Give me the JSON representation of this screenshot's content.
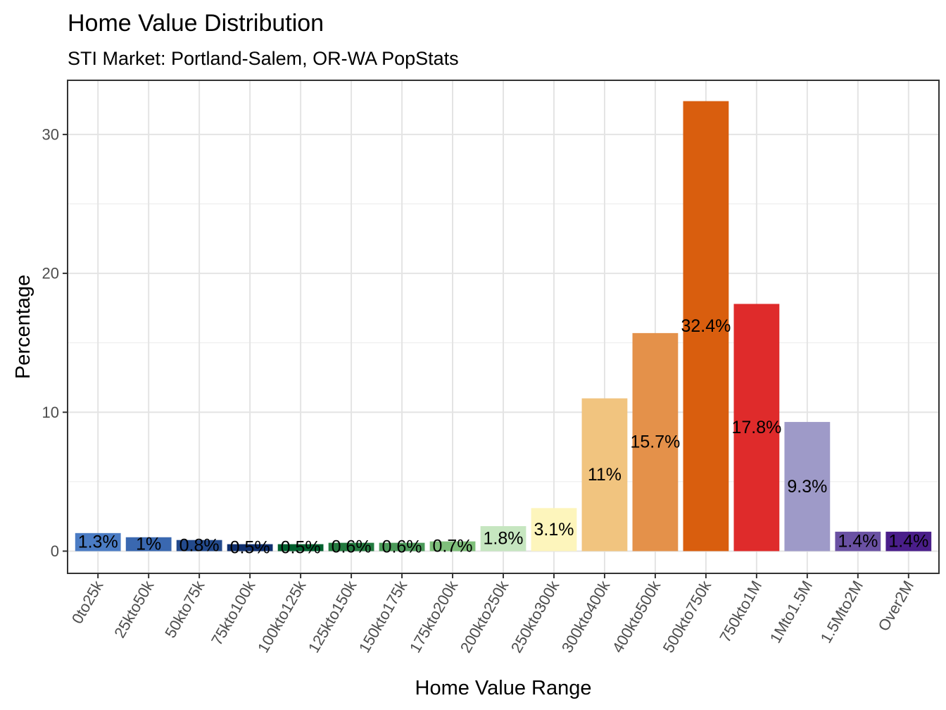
{
  "chart_data": {
    "type": "bar",
    "title": "Home Value Distribution",
    "subtitle": "STI Market: Portland-Salem, OR-WA PopStats",
    "xlabel": "Home Value Range",
    "ylabel": "Percentage",
    "ylim": [
      -1.6,
      33.9
    ],
    "yticks": [
      0,
      10,
      20,
      30
    ],
    "ytick_labels": [
      "0",
      "10",
      "20",
      "30"
    ],
    "grid": true,
    "categories": [
      "0to25k",
      "25kto50k",
      "50kto75k",
      "75kto100k",
      "100kto125k",
      "125kto150k",
      "150kto175k",
      "175kto200k",
      "200kto250k",
      "250kto300k",
      "300kto400k",
      "400kto500k",
      "500kto750k",
      "750kto1M",
      "1Mto1.5M",
      "1.5Mto2M",
      "Over2M"
    ],
    "values": [
      1.3,
      1.0,
      0.8,
      0.5,
      0.5,
      0.6,
      0.6,
      0.7,
      1.8,
      3.1,
      11.0,
      15.7,
      32.4,
      17.8,
      9.3,
      1.4,
      1.4
    ],
    "labels": [
      "1.3%",
      "1%",
      "0.8%",
      "0.5%",
      "0.5%",
      "0.6%",
      "0.6%",
      "0.7%",
      "1.8%",
      "3.1%",
      "11%",
      "15.7%",
      "32.4%",
      "17.8%",
      "9.3%",
      "1.4%",
      "1.4%"
    ],
    "colors": [
      "#4b7cc4",
      "#3a68b0",
      "#234a8c",
      "#0f2f6e",
      "#00602e",
      "#237a3f",
      "#4c9a5a",
      "#7fbf7b",
      "#c6e6c0",
      "#fdf5bc",
      "#f1c47f",
      "#e4914a",
      "#d95e0e",
      "#df2b2b",
      "#9e9ac8",
      "#6a51a3",
      "#4a1e8a"
    ]
  }
}
